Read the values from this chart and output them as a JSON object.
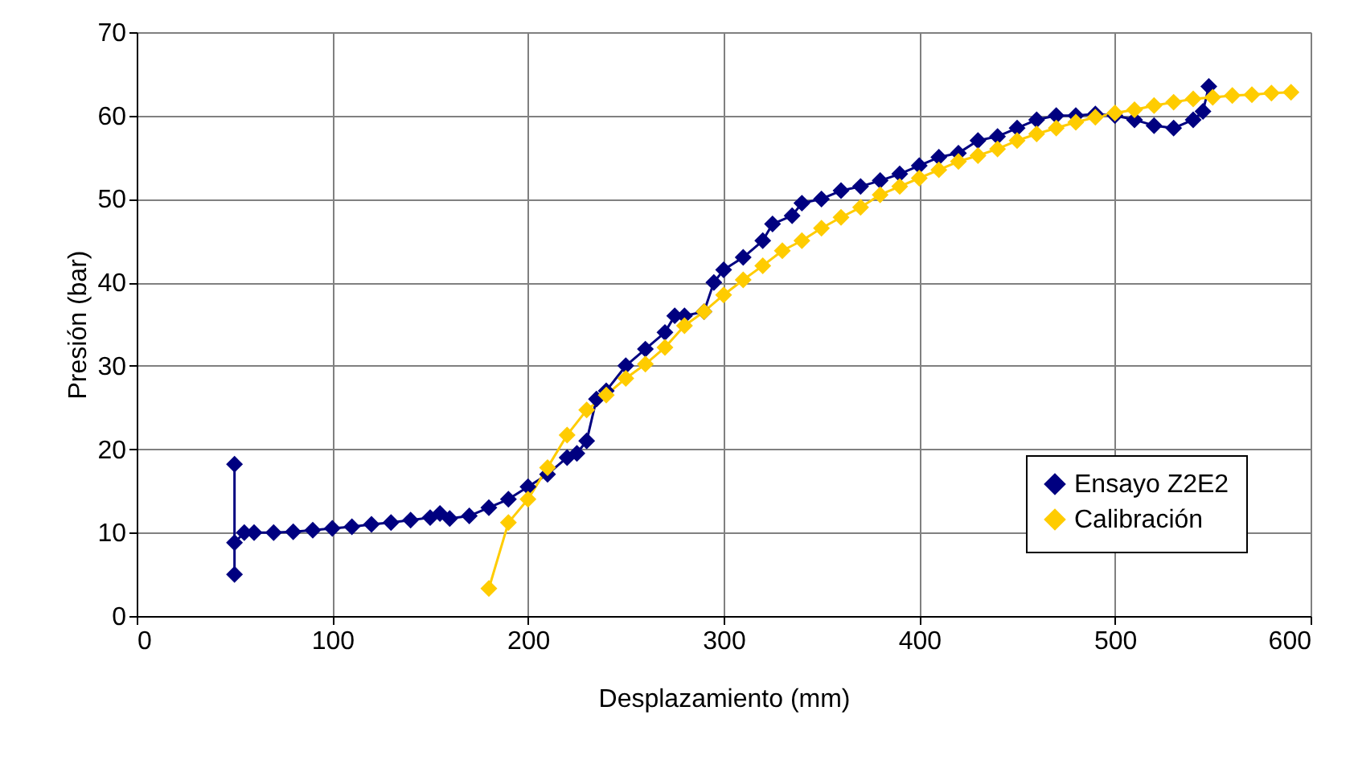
{
  "chart_data": {
    "type": "line",
    "xlabel": "Desplazamiento (mm)",
    "ylabel": "Presión (bar)",
    "xlim": [
      0,
      600
    ],
    "xticks": [
      0,
      100,
      200,
      300,
      400,
      500,
      600
    ],
    "ylim": [
      0,
      70
    ],
    "yticks": [
      0,
      10,
      20,
      30,
      40,
      50,
      60,
      70
    ],
    "grid": true,
    "legend": "bottom right",
    "marker": "diamond",
    "line_style": "solid",
    "series": [
      {
        "name": "Ensayo Z2E2",
        "color": "#000080",
        "x": [
          50,
          50,
          50,
          55,
          60,
          70,
          80,
          90,
          100,
          110,
          120,
          130,
          140,
          150,
          155,
          160,
          170,
          180,
          190,
          200,
          210,
          220,
          225,
          230,
          235,
          240,
          250,
          260,
          270,
          275,
          280,
          290,
          295,
          300,
          310,
          320,
          325,
          335,
          340,
          350,
          360,
          370,
          380,
          390,
          400,
          410,
          420,
          430,
          440,
          450,
          460,
          470,
          480,
          490,
          500,
          510,
          520,
          530,
          540,
          545,
          548
        ],
        "values": [
          18.2,
          5,
          8.8,
          10,
          10,
          10,
          10.1,
          10.3,
          10.5,
          10.7,
          11,
          11.2,
          11.5,
          11.8,
          12.3,
          11.7,
          12,
          13,
          14,
          15.5,
          17,
          19,
          19.5,
          21,
          26,
          27,
          30,
          32,
          34,
          36,
          36,
          36.5,
          40,
          41.5,
          43,
          45,
          47,
          48,
          49.5,
          50,
          51,
          51.5,
          52.2,
          53,
          54,
          55,
          55.5,
          57,
          57.5,
          58.5,
          59.5,
          60,
          60,
          60.2,
          60,
          59.5,
          58.8,
          58.5,
          59.5,
          60.5,
          63.5
        ]
      },
      {
        "name": "Calibración",
        "color": "#ffcc00",
        "x": [
          180,
          190,
          200,
          210,
          220,
          230,
          240,
          250,
          260,
          270,
          280,
          290,
          300,
          310,
          320,
          330,
          340,
          350,
          360,
          370,
          380,
          390,
          400,
          410,
          420,
          430,
          440,
          450,
          460,
          470,
          480,
          490,
          500,
          510,
          520,
          530,
          540,
          550,
          560,
          570,
          580,
          590
        ],
        "values": [
          3.3,
          11.2,
          14,
          17.8,
          21.7,
          24.7,
          26.5,
          28.5,
          30.2,
          32.2,
          34.8,
          36.5,
          38.5,
          40.3,
          42,
          43.8,
          45,
          46.5,
          47.8,
          49,
          50.5,
          51.5,
          52.5,
          53.5,
          54.5,
          55.2,
          56,
          57,
          57.8,
          58.5,
          59.2,
          59.8,
          60.3,
          60.7,
          61.2,
          61.6,
          62,
          62.2,
          62.4,
          62.5,
          62.7,
          62.8
        ]
      }
    ]
  }
}
